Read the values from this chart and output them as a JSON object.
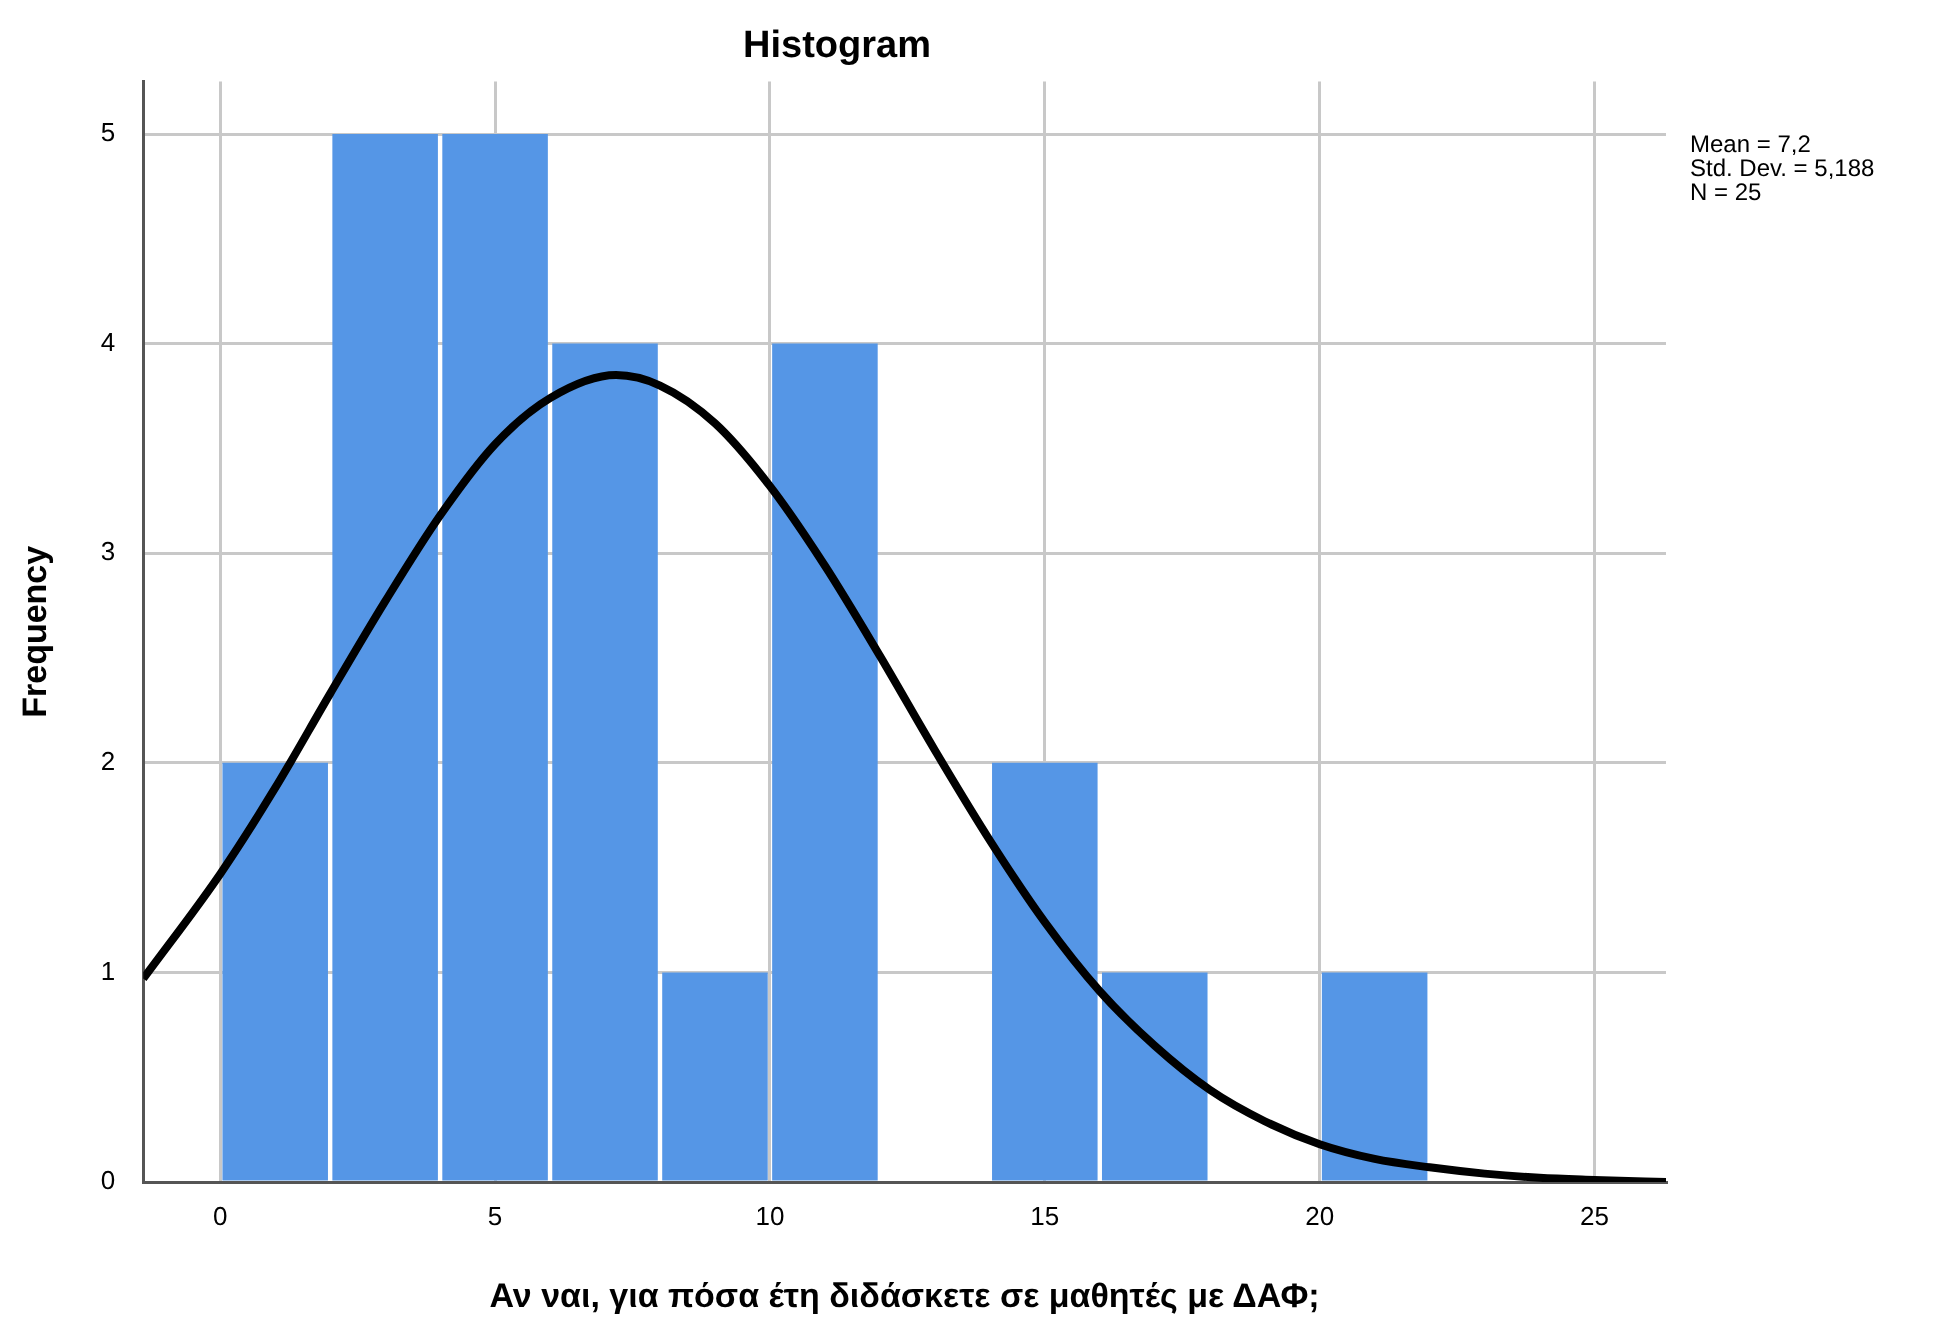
{
  "chart_data": {
    "type": "histogram",
    "title": "Histogram",
    "xlabel": "Αν ναι, για πόσα έτη διδάσκετε σε μαθητές με ΔΑΦ;",
    "ylabel": "Frequency",
    "bins": [
      0,
      2,
      4,
      6,
      8,
      10,
      12,
      14,
      16,
      18,
      20,
      22
    ],
    "series": [
      {
        "color": "#5596e6",
        "values": [
          2,
          5,
          5,
          4,
          1,
          4,
          0,
          2,
          1,
          0,
          1
        ]
      },
      {
        "type": "line",
        "color": "#000000",
        "x": [
          -1.4,
          0,
          1,
          2,
          3,
          4,
          5,
          6,
          7.2,
          8,
          9,
          10,
          11,
          12,
          13,
          14,
          15,
          16,
          17,
          18,
          19,
          20,
          21,
          22,
          23,
          24,
          25,
          26.3
        ],
        "values": [
          0.97,
          1.47,
          1.88,
          2.33,
          2.77,
          3.18,
          3.52,
          3.74,
          3.85,
          3.8,
          3.62,
          3.32,
          2.94,
          2.51,
          2.06,
          1.63,
          1.24,
          0.91,
          0.65,
          0.44,
          0.29,
          0.18,
          0.11,
          0.07,
          0.04,
          0.02,
          0.01,
          0.0
        ]
      }
    ],
    "xlim": [
      -1.4,
      26.3
    ],
    "xticks": [
      0,
      5,
      10,
      15,
      20,
      25
    ],
    "ylim": [
      0,
      5.25
    ],
    "yticks": [
      0,
      1,
      2,
      3,
      4,
      5
    ],
    "grid": true,
    "marker": "none",
    "line_style": "solid",
    "annotations": [
      "Mean = 7,2",
      "Std. Dev. = 5,188",
      "N = 25"
    ]
  }
}
